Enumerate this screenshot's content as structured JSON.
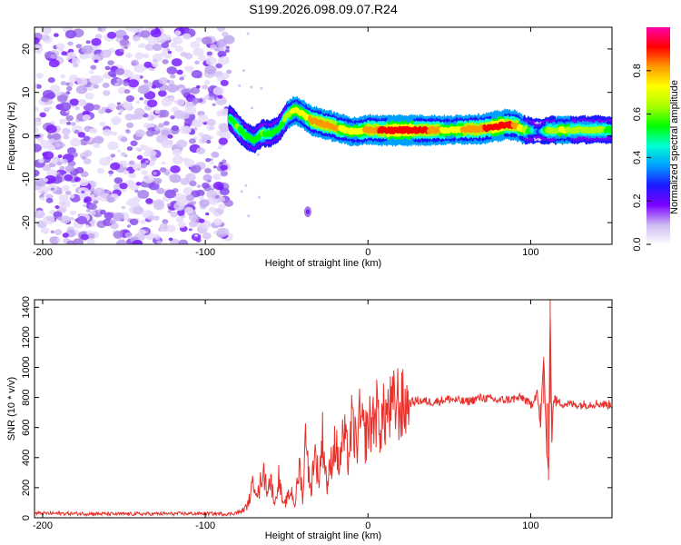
{
  "title": "S199.2026.098.09.07.R24",
  "chart_data": [
    {
      "type": "heatmap",
      "xlabel": "Height of straight line (km)",
      "ylabel": "Frequency (Hz)",
      "xlim": [
        -205,
        150
      ],
      "ylim": [
        -25,
        25
      ],
      "xticks": [
        -200,
        -100,
        0,
        100
      ],
      "xtick_labels": [
        "-200",
        "-100",
        "0",
        "100"
      ],
      "yticks": [
        -20,
        -10,
        0,
        10,
        20
      ],
      "ytick_labels": [
        "-20",
        "-10",
        "0",
        "10",
        "20"
      ],
      "noise_region_x": [
        -205,
        -85
      ],
      "ridge": {
        "x": [
          -85,
          -80,
          -75,
          -70,
          -65,
          -60,
          -55,
          -50,
          -45,
          -40,
          -35,
          -30,
          -25,
          -20,
          -15,
          -10,
          -5,
          0,
          10,
          20,
          30,
          40,
          50,
          60,
          70,
          80,
          85,
          90,
          95,
          100,
          105,
          110,
          120,
          130,
          140,
          150
        ],
        "freq": [
          4,
          2,
          0,
          -1,
          0.5,
          0.5,
          1.5,
          4.5,
          6,
          5,
          3.5,
          3,
          2.5,
          2,
          1.5,
          1,
          1,
          1.5,
          1.2,
          1.3,
          1.3,
          1.3,
          1.3,
          1.5,
          1.6,
          2.2,
          2.6,
          2.5,
          1.5,
          1.2,
          1.0,
          1.3,
          1.3,
          1.4,
          1.4,
          1.4
        ],
        "amplitude": [
          0.55,
          0.6,
          0.55,
          0.5,
          0.6,
          0.55,
          0.5,
          0.65,
          0.7,
          0.7,
          0.8,
          0.85,
          0.85,
          0.8,
          0.75,
          0.7,
          0.75,
          0.8,
          0.9,
          0.95,
          0.9,
          0.85,
          0.7,
          0.8,
          0.85,
          0.95,
          0.9,
          0.85,
          0.7,
          0.5,
          0.3,
          0.6,
          0.7,
          0.6,
          0.65,
          0.55
        ]
      },
      "colorbar": {
        "label": "Normalized spectral amplitude",
        "range": [
          0.0,
          1.0
        ],
        "ticks": [
          0.0,
          0.2,
          0.4,
          0.6,
          0.8
        ],
        "tick_labels": [
          "0.0",
          "0.2",
          "0.4",
          "0.6",
          "0.8"
        ],
        "colormap": [
          "#ffffff",
          "#cdb8f2",
          "#7a00ff",
          "#1a1aff",
          "#00a0ff",
          "#00ffd0",
          "#00ff00",
          "#aaff00",
          "#ffff00",
          "#ff9900",
          "#ff0000",
          "#ff00aa"
        ]
      }
    },
    {
      "type": "line",
      "xlabel": "Height of straight line (km)",
      "ylabel": "SNR (10 * v/v)",
      "xlim": [
        -205,
        150
      ],
      "ylim": [
        0,
        1450
      ],
      "xticks": [
        -200,
        -100,
        0,
        100
      ],
      "xtick_labels": [
        "-200",
        "-100",
        "0",
        "100"
      ],
      "yticks": [
        0,
        200,
        400,
        600,
        800,
        1000,
        1200,
        1400
      ],
      "ytick_labels": [
        "0",
        "200",
        "400",
        "600",
        "800",
        "1000",
        "1200",
        "1400"
      ],
      "color": "#e8302b",
      "series": [
        {
          "name": "SNR",
          "x": [
            -205,
            -150,
            -100,
            -85,
            -78,
            -74,
            -70,
            -67,
            -65,
            -62,
            -60,
            -57,
            -55,
            -52,
            -50,
            -47,
            -45,
            -42,
            -40,
            -38,
            -36,
            -35,
            -33,
            -30,
            -28,
            -25,
            -23,
            -20,
            -18,
            -15,
            -12,
            -10,
            -7,
            -5,
            -2,
            0,
            3,
            5,
            8,
            10,
            12,
            15,
            18,
            20,
            25,
            30,
            40,
            50,
            60,
            70,
            80,
            90,
            95,
            100,
            104,
            106,
            108,
            110,
            111,
            112,
            113,
            114,
            116,
            120,
            130,
            140,
            150
          ],
          "y": [
            30,
            25,
            28,
            25,
            40,
            80,
            250,
            150,
            320,
            200,
            250,
            90,
            280,
            70,
            120,
            180,
            80,
            350,
            120,
            640,
            200,
            180,
            450,
            250,
            550,
            200,
            350,
            520,
            330,
            550,
            400,
            620,
            480,
            650,
            530,
            600,
            650,
            700,
            620,
            680,
            700,
            720,
            780,
            730,
            760,
            780,
            770,
            790,
            770,
            800,
            780,
            790,
            800,
            750,
            840,
            600,
            1070,
            420,
            250,
            1460,
            500,
            800,
            770,
            760,
            750,
            760,
            750
          ]
        }
      ]
    }
  ]
}
